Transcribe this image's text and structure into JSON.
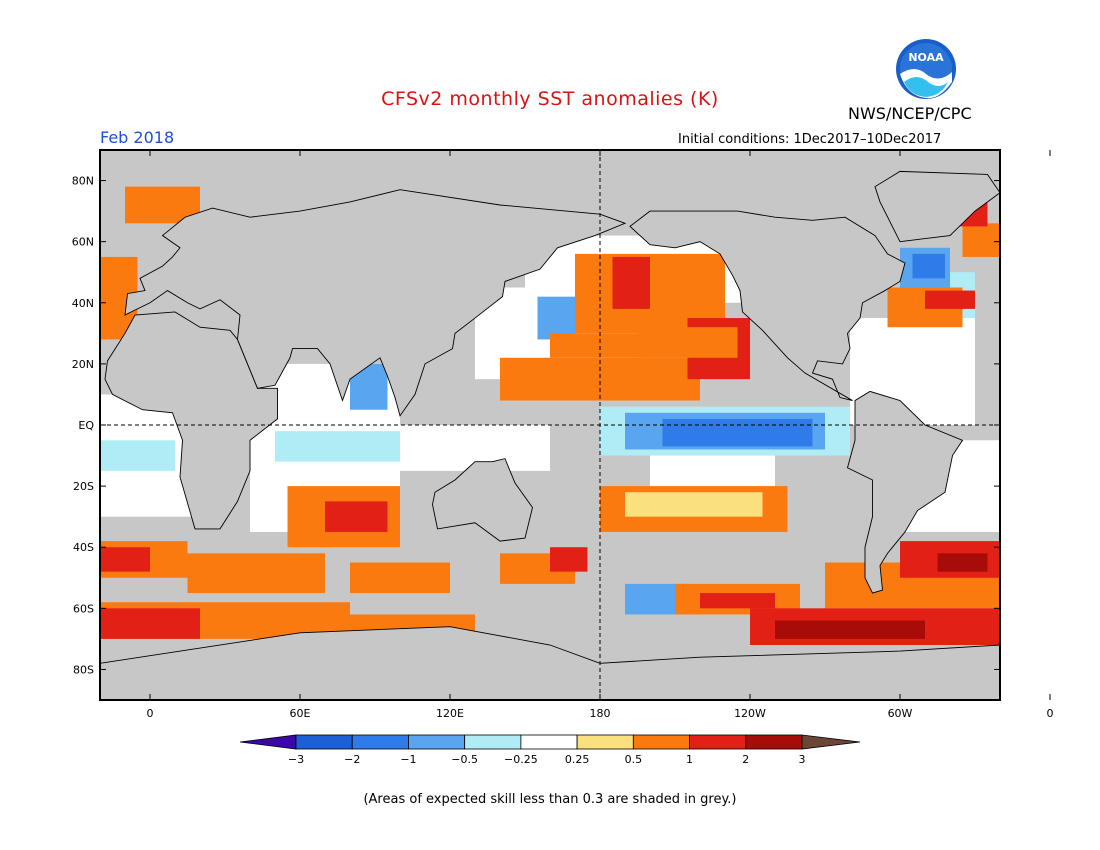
{
  "title": "CFSv2 monthly SST anomalies (K)",
  "agency": "NWS/NCEP/CPC",
  "logo_text": "NOAA",
  "month": "Feb 2018",
  "initial_conditions": "Initial conditions: 1Dec2017–10Dec2017",
  "footnote": "(Areas of expected skill less than 0.3 are shaded in grey.)",
  "y_ticks": [
    "80N",
    "60N",
    "40N",
    "20N",
    "EQ",
    "20S",
    "40S",
    "60S",
    "80S"
  ],
  "x_ticks": [
    "0",
    "60E",
    "120E",
    "180",
    "120W",
    "60W",
    "0"
  ],
  "colorbar": {
    "labels": [
      "−3",
      "−2",
      "−1",
      "−0.5",
      "−0.25",
      "0.25",
      "0.5",
      "1",
      "2",
      "3"
    ],
    "colors": [
      "#3a07a8",
      "#1c5fd6",
      "#2f7ce9",
      "#5aa5ef",
      "#b0ecf6",
      "#ffffff",
      "#fbe07f",
      "#fb7a10",
      "#e32015",
      "#a80c08",
      "#6b4636"
    ]
  },
  "colors": {
    "land": "#c7c7c7",
    "no_skill": "#c7c7c7",
    "ocean": "#ffffff",
    "title": "#dd1111",
    "month": "#1e4fd8"
  },
  "chart_data": {
    "type": "heatmap",
    "variable": "SST anomaly (K)",
    "lat_range": [
      -90,
      90
    ],
    "lon_range": [
      -20,
      340
    ]
  }
}
